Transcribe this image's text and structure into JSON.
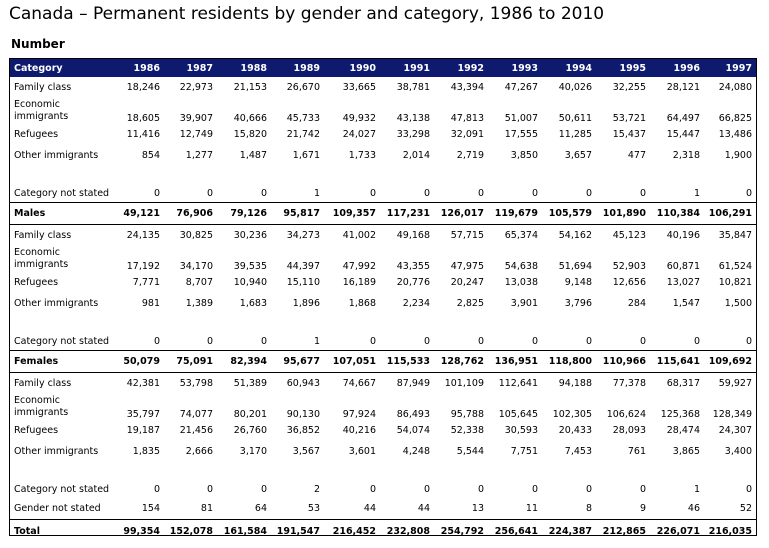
{
  "title": "Canada – Permanent residents by gender and category, 1986 to 2010",
  "unit_label": "Number",
  "table": {
    "category_header": "Category",
    "years": [
      "1986",
      "1987",
      "1988",
      "1989",
      "1990",
      "1991",
      "1992",
      "1993",
      "1994",
      "1995",
      "1996",
      "1997"
    ],
    "rows": [
      {
        "label": "Family class",
        "kind": "single",
        "values": [
          "18,246",
          "22,973",
          "21,153",
          "26,670",
          "33,665",
          "38,781",
          "43,394",
          "47,267",
          "40,026",
          "32,255",
          "28,121",
          "24,080"
        ]
      },
      {
        "label": "Economic immigrants",
        "kind": "double",
        "values": [
          "18,605",
          "39,907",
          "40,666",
          "45,733",
          "49,932",
          "43,138",
          "47,813",
          "51,007",
          "50,611",
          "53,721",
          "64,497",
          "66,825"
        ]
      },
      {
        "label": "Refugees",
        "kind": "single",
        "values": [
          "11,416",
          "12,749",
          "15,820",
          "21,742",
          "24,027",
          "33,298",
          "32,091",
          "17,555",
          "11,285",
          "15,437",
          "15,447",
          "13,486"
        ]
      },
      {
        "label": "Other immigrants",
        "kind": "single",
        "values": [
          "854",
          "1,277",
          "1,487",
          "1,671",
          "1,733",
          "2,014",
          "2,719",
          "3,850",
          "3,657",
          "477",
          "2,318",
          "1,900"
        ]
      },
      {
        "label": "Category not stated",
        "kind": "tall",
        "values": [
          "0",
          "0",
          "0",
          "1",
          "0",
          "0",
          "0",
          "0",
          "0",
          "0",
          "1",
          "0"
        ]
      },
      {
        "label": "Males",
        "kind": "total",
        "values": [
          "49,121",
          "76,906",
          "79,126",
          "95,817",
          "109,357",
          "117,231",
          "126,017",
          "119,679",
          "105,579",
          "101,890",
          "110,384",
          "106,291"
        ]
      },
      {
        "label": "Family class",
        "kind": "single",
        "values": [
          "24,135",
          "30,825",
          "30,236",
          "34,273",
          "41,002",
          "49,168",
          "57,715",
          "65,374",
          "54,162",
          "45,123",
          "40,196",
          "35,847"
        ]
      },
      {
        "label": "Economic immigrants",
        "kind": "double",
        "values": [
          "17,192",
          "34,170",
          "39,535",
          "44,397",
          "47,992",
          "43,355",
          "47,975",
          "54,638",
          "51,694",
          "52,903",
          "60,871",
          "61,524"
        ]
      },
      {
        "label": "Refugees",
        "kind": "single",
        "values": [
          "7,771",
          "8,707",
          "10,940",
          "15,110",
          "16,189",
          "20,776",
          "20,247",
          "13,038",
          "9,148",
          "12,656",
          "13,027",
          "10,821"
        ]
      },
      {
        "label": "Other immigrants",
        "kind": "single",
        "values": [
          "981",
          "1,389",
          "1,683",
          "1,896",
          "1,868",
          "2,234",
          "2,825",
          "3,901",
          "3,796",
          "284",
          "1,547",
          "1,500"
        ]
      },
      {
        "label": "Category not stated",
        "kind": "tall",
        "values": [
          "0",
          "0",
          "0",
          "1",
          "0",
          "0",
          "0",
          "0",
          "0",
          "0",
          "0",
          "0"
        ]
      },
      {
        "label": "Females",
        "kind": "total",
        "values": [
          "50,079",
          "75,091",
          "82,394",
          "95,677",
          "107,051",
          "115,533",
          "128,762",
          "136,951",
          "118,800",
          "110,966",
          "115,641",
          "109,692"
        ]
      },
      {
        "label": "Family class",
        "kind": "single",
        "values": [
          "42,381",
          "53,798",
          "51,389",
          "60,943",
          "74,667",
          "87,949",
          "101,109",
          "112,641",
          "94,188",
          "77,378",
          "68,317",
          "59,927"
        ]
      },
      {
        "label": "Economic immigrants",
        "kind": "double",
        "values": [
          "35,797",
          "74,077",
          "80,201",
          "90,130",
          "97,924",
          "86,493",
          "95,788",
          "105,645",
          "102,305",
          "106,624",
          "125,368",
          "128,349"
        ]
      },
      {
        "label": "Refugees",
        "kind": "single",
        "values": [
          "19,187",
          "21,456",
          "26,760",
          "36,852",
          "40,216",
          "54,074",
          "52,338",
          "30,593",
          "20,433",
          "28,093",
          "28,474",
          "24,307"
        ]
      },
      {
        "label": "Other immigrants",
        "kind": "single",
        "values": [
          "1,835",
          "2,666",
          "3,170",
          "3,567",
          "3,601",
          "4,248",
          "5,544",
          "7,751",
          "7,453",
          "761",
          "3,865",
          "3,400"
        ]
      },
      {
        "label": "Category not stated",
        "kind": "tall",
        "values": [
          "0",
          "0",
          "0",
          "2",
          "0",
          "0",
          "0",
          "0",
          "0",
          "0",
          "1",
          "0"
        ]
      },
      {
        "label": "Gender not stated",
        "kind": "single",
        "values": [
          "154",
          "81",
          "64",
          "53",
          "44",
          "44",
          "13",
          "11",
          "8",
          "9",
          "46",
          "52"
        ]
      },
      {
        "label": "Total",
        "kind": "total last",
        "values": [
          "99,354",
          "152,078",
          "161,584",
          "191,547",
          "216,452",
          "232,808",
          "254,792",
          "256,641",
          "224,387",
          "212,865",
          "226,071",
          "216,035"
        ]
      }
    ]
  },
  "colors": {
    "header_bg": "#0d1a6e",
    "header_text": "#ffffff"
  }
}
